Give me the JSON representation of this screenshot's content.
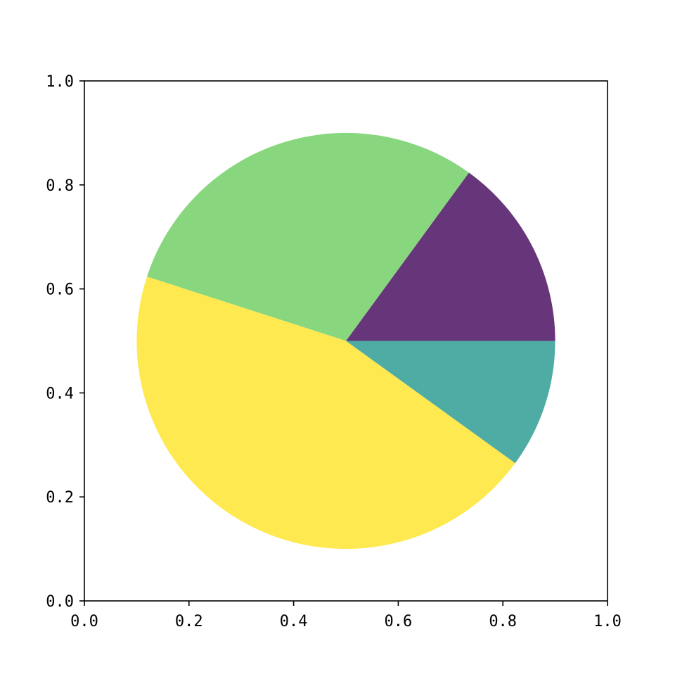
{
  "chart_data": {
    "type": "pie",
    "title": "",
    "xlabel": "",
    "ylabel": "",
    "xlim": [
      0.0,
      1.0
    ],
    "ylim": [
      0.0,
      1.0
    ],
    "x_ticks": [
      "0.0",
      "0.2",
      "0.4",
      "0.6",
      "0.8",
      "1.0"
    ],
    "y_ticks": [
      "0.0",
      "0.2",
      "0.4",
      "0.6",
      "0.8",
      "1.0"
    ],
    "grid": false,
    "legend": "none",
    "pie_center": [
      0.5,
      0.5
    ],
    "pie_radius": 0.4,
    "start_angle_deg": 0,
    "slices": [
      {
        "value": 15,
        "color": "#67357a"
      },
      {
        "value": 30,
        "color": "#88d77e"
      },
      {
        "value": 45,
        "color": "#fee951"
      },
      {
        "value": 10,
        "color": "#4eaca4"
      }
    ]
  }
}
